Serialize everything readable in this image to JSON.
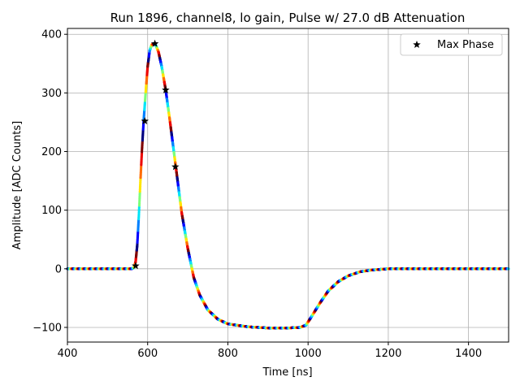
{
  "chart_data": {
    "type": "scatter",
    "title": "Run 1896, channel8, lo gain, Pulse w/ 27.0 dB Attenuation",
    "xlabel": "Time [ns]",
    "ylabel": "Amplitude [ADC Counts]",
    "xlim": [
      400,
      1500
    ],
    "ylim": [
      -125,
      410
    ],
    "xticks": [
      400,
      600,
      800,
      1000,
      1200,
      1400
    ],
    "yticks": [
      -100,
      0,
      100,
      200,
      300,
      400
    ],
    "xtick_labels": [
      "400",
      "600",
      "800",
      "1000",
      "1200",
      "1400"
    ],
    "ytick_labels": [
      "−100",
      "0",
      "100",
      "200",
      "300",
      "400"
    ],
    "grid": true,
    "legend_position": "top-right",
    "colormap": "jet",
    "series": [
      {
        "marker": "dot",
        "color_cycle": [
          "#00007f",
          "#0000ff",
          "#0080ff",
          "#00e4f8",
          "#7dff7a",
          "#ffe500",
          "#ff6c00",
          "#ed0400",
          "#7f0000"
        ],
        "curve": [
          [
            400,
            0
          ],
          [
            560,
            0
          ],
          [
            566,
            2
          ],
          [
            570,
            12
          ],
          [
            574,
            40
          ],
          [
            578,
            90
          ],
          [
            582,
            150
          ],
          [
            586,
            205
          ],
          [
            590,
            252
          ],
          [
            595,
            300
          ],
          [
            600,
            345
          ],
          [
            605,
            372
          ],
          [
            610,
            382
          ],
          [
            615,
            384
          ],
          [
            620,
            382
          ],
          [
            627,
            370
          ],
          [
            635,
            345
          ],
          [
            645,
            305
          ],
          [
            655,
            255
          ],
          [
            670,
            175
          ],
          [
            685,
            95
          ],
          [
            700,
            35
          ],
          [
            715,
            -15
          ],
          [
            730,
            -45
          ],
          [
            750,
            -70
          ],
          [
            775,
            -86
          ],
          [
            800,
            -94
          ],
          [
            850,
            -99
          ],
          [
            900,
            -101
          ],
          [
            950,
            -101
          ],
          [
            980,
            -100
          ],
          [
            995,
            -96
          ],
          [
            1010,
            -80
          ],
          [
            1030,
            -58
          ],
          [
            1050,
            -38
          ],
          [
            1075,
            -22
          ],
          [
            1100,
            -12
          ],
          [
            1130,
            -5
          ],
          [
            1160,
            -2
          ],
          [
            1200,
            0
          ],
          [
            1500,
            0
          ]
        ]
      },
      {
        "name": "Max Phase",
        "marker": "star",
        "color": "#000000",
        "points": [
          [
            570,
            5
          ],
          [
            593,
            252
          ],
          [
            618,
            384
          ],
          [
            645,
            305
          ],
          [
            669,
            174
          ]
        ]
      }
    ]
  }
}
